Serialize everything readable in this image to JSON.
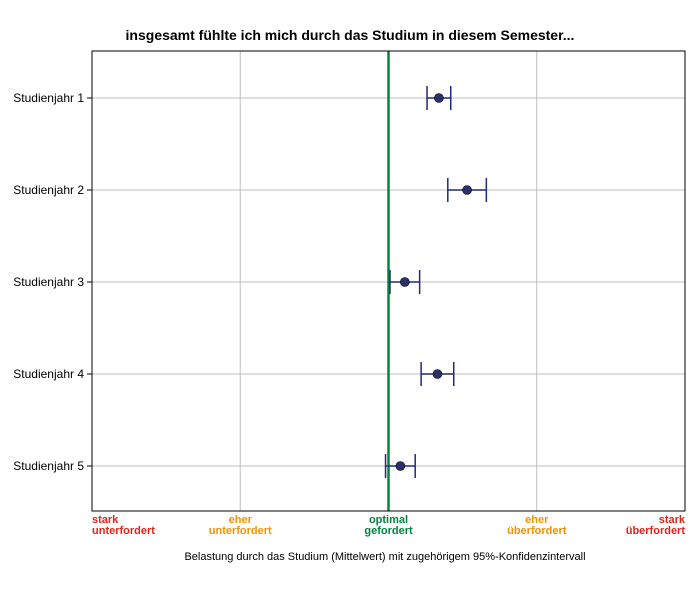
{
  "chart_data": {
    "type": "scatter",
    "title": "insgesamt fühlte ich mich durch das Studium in diesem Semester...",
    "xlabel": "Belastung durch das Studium (Mittelwert) mit zugehörigem 95%-Konfidenzintervall",
    "xlim": [
      1,
      5
    ],
    "grid": true,
    "x_ticks": [
      {
        "value": 1,
        "lines": [
          "stark",
          "unterfordert"
        ],
        "color": "#e2231a"
      },
      {
        "value": 2,
        "lines": [
          "eher",
          "unterfordert"
        ],
        "color": "#f39200"
      },
      {
        "value": 3,
        "lines": [
          "optimal",
          "gefordert"
        ],
        "color": "#00853f"
      },
      {
        "value": 4,
        "lines": [
          "eher",
          "überfordert"
        ],
        "color": "#f39200"
      },
      {
        "value": 5,
        "lines": [
          "stark",
          "überfordert"
        ],
        "color": "#e2231a"
      }
    ],
    "reference_line": {
      "value": 3,
      "color": "#00853f"
    },
    "categories": [
      "Studienjahr 1",
      "Studienjahr 2",
      "Studienjahr 3",
      "Studienjahr 4",
      "Studienjahr 5"
    ],
    "series": [
      {
        "mean": [
          3.34,
          3.53,
          3.11,
          3.33,
          3.08
        ],
        "lower": [
          3.26,
          3.4,
          3.01,
          3.22,
          2.98
        ],
        "upper": [
          3.42,
          3.66,
          3.21,
          3.44,
          3.18
        ]
      }
    ],
    "colors": {
      "marker": "#2b2f6b",
      "errorbar": "#1f2a7a",
      "grid": "#bdbdbd",
      "frame": "#000000"
    }
  }
}
